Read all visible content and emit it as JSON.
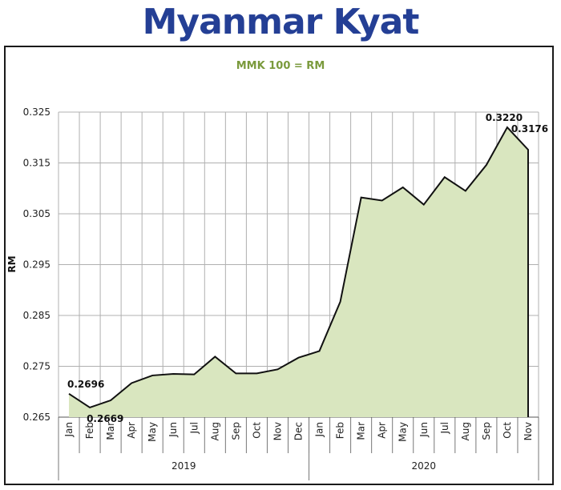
{
  "title": "Myanmar Kyat",
  "colors": {
    "title": "#243f95",
    "subtitle": "#7a9a3c",
    "area_fill": "#d9e6bf",
    "line": "#111111",
    "grid": "#b0b0b0"
  },
  "chart_data": {
    "type": "area",
    "title": "Myanmar Kyat",
    "subtitle": "MMK 100 = RM",
    "xlabel": "",
    "ylabel": "RM",
    "ylim": [
      0.265,
      0.325
    ],
    "yticks": [
      "0.325",
      "0.315",
      "0.305",
      "0.295",
      "0.285",
      "0.275",
      "0.265"
    ],
    "grid": true,
    "categories": [
      "Jan",
      "Feb",
      "Mar",
      "Apr",
      "May",
      "Jun",
      "Jul",
      "Aug",
      "Sep",
      "Oct",
      "Nov",
      "Dec",
      "Jan",
      "Feb",
      "Mar",
      "Apr",
      "May",
      "Jun",
      "Jul",
      "Aug",
      "Sep",
      "Oct",
      "Nov"
    ],
    "years": [
      {
        "label": "2019",
        "count": 12
      },
      {
        "label": "2020",
        "count": 11
      }
    ],
    "series": [
      {
        "values": [
          0.2696,
          0.2669,
          0.2683,
          0.2717,
          0.2732,
          0.2735,
          0.2734,
          0.2769,
          0.2736,
          0.2736,
          0.2744,
          0.2767,
          0.278,
          0.2877,
          0.3082,
          0.3076,
          0.3102,
          0.3068,
          0.3122,
          0.3095,
          0.3146,
          0.322,
          0.3176
        ]
      }
    ],
    "data_labels": [
      {
        "index": 0,
        "text": "0.2696"
      },
      {
        "index": 1,
        "text": "0.2669"
      },
      {
        "index": 21,
        "text": "0.3220"
      },
      {
        "index": 22,
        "text": "0.3176"
      }
    ]
  }
}
